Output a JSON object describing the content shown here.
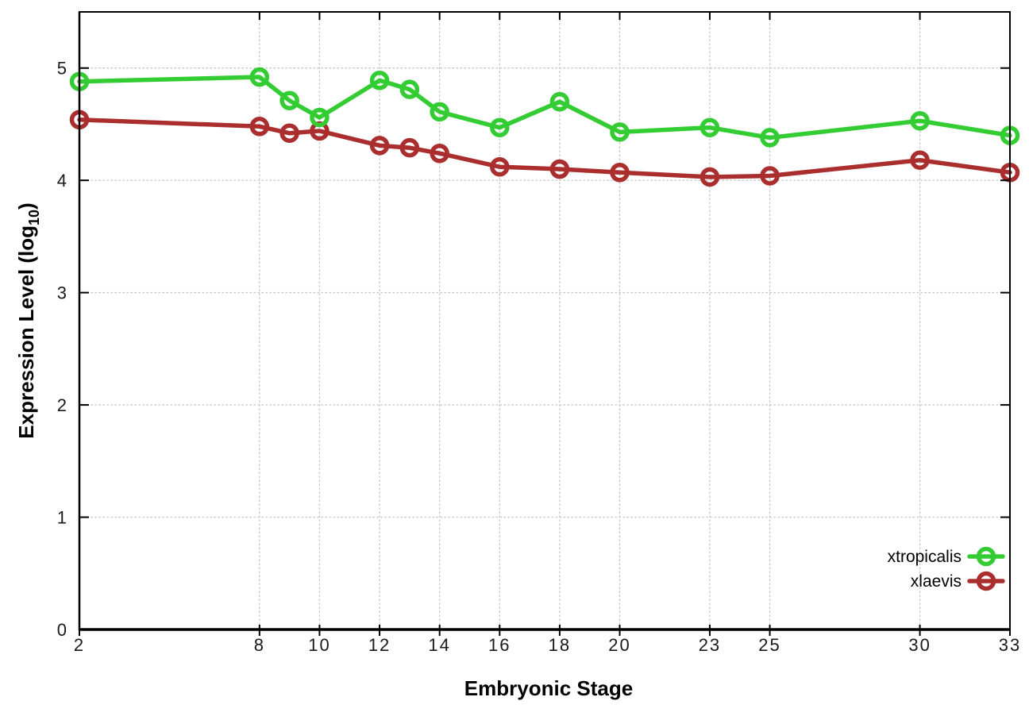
{
  "chart_data": {
    "type": "line",
    "title": "",
    "xlabel": "Embryonic Stage",
    "ylabel": {
      "prefix": "Expression Level (log",
      "sub": "10",
      "suffix": ")"
    },
    "x": [
      2,
      8,
      9,
      10,
      12,
      13,
      14,
      16,
      18,
      20,
      23,
      25,
      30,
      33
    ],
    "x_ticks": [
      2,
      8,
      10,
      12,
      14,
      16,
      18,
      20,
      23,
      25,
      30,
      33
    ],
    "y_ticks": [
      0,
      1,
      2,
      3,
      4,
      5
    ],
    "xlim": [
      2,
      33
    ],
    "ylim": [
      0,
      5.5
    ],
    "grid": "dotted",
    "legend_position": "inside-right-bottom",
    "marker_shape": "open-circle",
    "series": [
      {
        "name": "xtropicalis",
        "color": "#33cc33",
        "values": [
          4.88,
          4.92,
          4.71,
          4.56,
          4.89,
          4.81,
          4.61,
          4.47,
          4.7,
          4.43,
          4.47,
          4.38,
          4.53,
          4.4
        ]
      },
      {
        "name": "xlaevis",
        "color": "#aa2e2e",
        "values": [
          4.54,
          4.48,
          4.42,
          4.44,
          4.31,
          4.29,
          4.24,
          4.12,
          4.1,
          4.07,
          4.03,
          4.04,
          4.18,
          4.07
        ]
      }
    ]
  },
  "colors": {
    "grid": "#c9c9c9",
    "axis": "#000000",
    "tick_text": "#1a1a1a",
    "background": "#ffffff"
  }
}
